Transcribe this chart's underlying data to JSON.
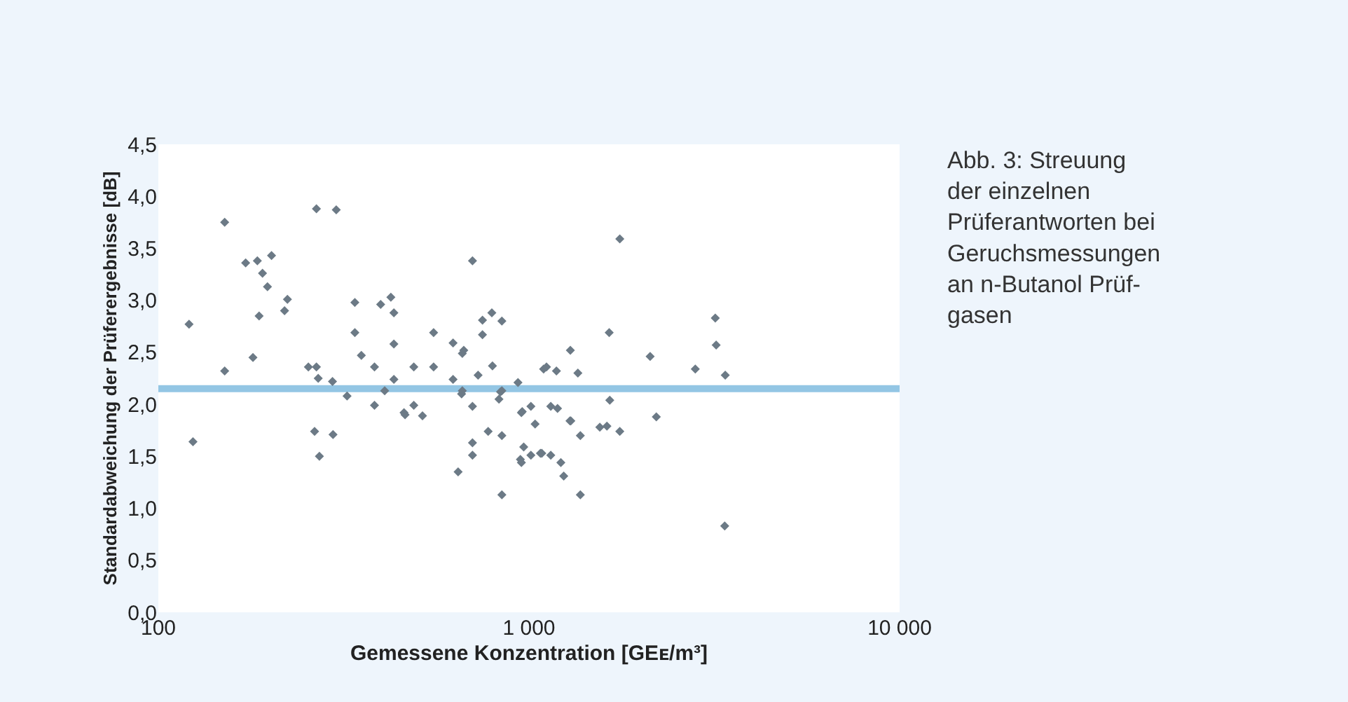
{
  "chart_data": {
    "type": "scatter",
    "xlabel": "Gemessene Konzentration [GEᴇ/m³]",
    "ylabel": "Standardabweichung der Prüferergebnisse [dB]",
    "annotations": [
      "Abb. 3: Streuung\nder einzelnen\nPrüferantworten bei\nGeruchsmessungen\nan n-Butanol Prüf-\ngasen"
    ],
    "log": "x",
    "xlim": [
      100,
      10000
    ],
    "xticks": [
      100,
      {
        "value": 1000,
        "label": "1 000"
      },
      {
        "value": 10000,
        "label": "10 000"
      }
    ],
    "ylim": [
      0,
      4.5
    ],
    "yticks": [
      {
        "value": 0,
        "label": "0,0"
      },
      {
        "value": 0.5,
        "label": "0,5"
      },
      {
        "value": 1,
        "label": "1,0"
      },
      {
        "value": 1.5,
        "label": "1,5"
      },
      {
        "value": 2,
        "label": "2,0"
      },
      {
        "value": 2.5,
        "label": "2,5"
      },
      {
        "value": 3,
        "label": "3,0"
      },
      {
        "value": 3.5,
        "label": "3,5"
      },
      {
        "value": 4,
        "label": "4,0"
      },
      {
        "value": 4.5,
        "label": "4,5"
      }
    ],
    "grid": false,
    "marker": "diamond",
    "ref_lines": [
      {
        "axis": "y",
        "value": 2.15,
        "color": "#93c6e4"
      }
    ],
    "series": [
      {
        "color": "#6c7a86",
        "x": [
          121,
          124,
          151,
          151,
          172,
          185,
          191,
          197,
          202,
          187,
          180,
          219,
          223,
          267,
          302,
          254,
          267,
          270,
          295,
          264,
          296,
          272,
          323,
          339,
          339,
          353,
          383,
          383,
          398,
          424,
          432,
          432,
          432,
          408,
          460,
          463,
          489,
          489,
          516,
          553,
          553,
          624,
          624,
          661,
          667,
          658,
          661,
          704,
          704,
          704,
          704,
          644,
          729,
          749,
          749,
          794,
          845,
          797,
          776,
          845,
          845,
          830,
          838,
          845,
          934,
          954,
          959,
          1012,
          1039,
          968,
          948,
          954,
          1012,
          1074,
          1083,
          1145,
          1145,
          1194,
          1095,
          1115,
          1186,
          1293,
          1355,
          1290,
          1297,
          1376,
          1219,
          1241,
          1376,
          1553,
          1623,
          1758,
          1652,
          1646,
          1758,
          2123,
          2206,
          2810,
          3182,
          3199,
          3385,
          3374
        ],
        "values": [
          2.77,
          1.64,
          3.75,
          2.32,
          3.36,
          3.38,
          3.26,
          3.13,
          3.43,
          2.85,
          2.45,
          2.9,
          3.01,
          3.88,
          3.87,
          2.36,
          2.36,
          2.25,
          2.22,
          1.74,
          1.71,
          1.5,
          2.08,
          2.98,
          2.69,
          2.47,
          2.36,
          1.99,
          2.96,
          3.03,
          2.88,
          2.58,
          2.24,
          2.13,
          1.92,
          1.9,
          2.36,
          1.99,
          1.89,
          2.69,
          2.36,
          2.59,
          2.24,
          2.49,
          2.52,
          2.1,
          2.13,
          3.38,
          1.98,
          1.63,
          1.51,
          1.35,
          2.28,
          2.81,
          2.67,
          2.88,
          2.8,
          2.37,
          1.74,
          1.7,
          1.13,
          2.05,
          2.12,
          2.13,
          2.21,
          1.92,
          1.93,
          1.98,
          1.81,
          1.59,
          1.47,
          1.44,
          1.51,
          1.53,
          1.53,
          1.51,
          1.98,
          1.96,
          2.34,
          2.36,
          2.32,
          2.52,
          2.3,
          1.84,
          1.84,
          1.7,
          1.44,
          1.31,
          1.13,
          1.78,
          1.79,
          1.74,
          2.04,
          2.69,
          3.59,
          2.46,
          1.88,
          2.34,
          2.83,
          2.57,
          2.28,
          0.83
        ]
      }
    ]
  }
}
